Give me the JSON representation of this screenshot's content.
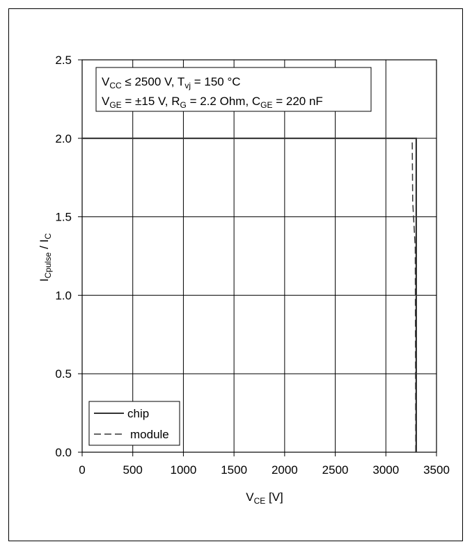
{
  "chart_data": {
    "type": "line",
    "title": "",
    "annotation": {
      "line1": {
        "v": "V",
        "sub1": "CC",
        "mid": " ≤ 2500 V, T",
        "sub2": "vj",
        "tail": " = 150 °C"
      },
      "line2": {
        "v": "V",
        "sub1": "GE",
        "a": " = ±15 V, R",
        "sub2": "G",
        "b": " = 2.2 Ohm, C",
        "sub3": "GE",
        "c": " = 220 nF"
      }
    },
    "xlabel": {
      "main": "V",
      "sub": "CE",
      "tail": " [V]"
    },
    "ylabel": {
      "main": "I",
      "sub1": "Cpulse",
      "mid": " / I",
      "sub2": "C"
    },
    "xlim": [
      0,
      3500
    ],
    "ylim": [
      0,
      2.5
    ],
    "xticks": [
      "0",
      "500",
      "1000",
      "1500",
      "2000",
      "2500",
      "3000",
      "3500"
    ],
    "yticks": [
      "0.0",
      "0.5",
      "1.0",
      "1.5",
      "2.0",
      "2.5"
    ],
    "grid": true,
    "legend_position": "bottom-left",
    "series": [
      {
        "name": "chip",
        "style": "solid",
        "color": "#333333",
        "points": [
          [
            0,
            2.0
          ],
          [
            3300,
            2.0
          ],
          [
            3300,
            0.0
          ]
        ]
      },
      {
        "name": "module",
        "style": "dashed",
        "color": "#333333",
        "points": [
          [
            0,
            2.0
          ],
          [
            3260,
            2.0
          ],
          [
            3265,
            1.6
          ],
          [
            3290,
            1.3
          ],
          [
            3295,
            0.0
          ]
        ]
      }
    ]
  }
}
